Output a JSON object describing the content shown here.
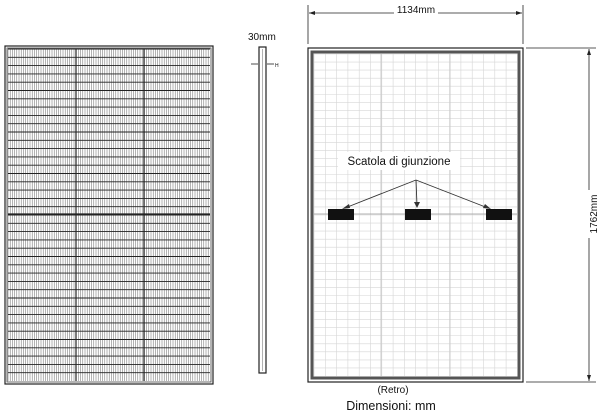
{
  "labels": {
    "width_dimension": "1134mm",
    "height_dimension": "1762mm",
    "thickness_dimension": "30mm",
    "thickness_marker": "H",
    "junction_box": "Scatola di giunzione",
    "rear_view": "(Retro)",
    "dimensions_unit": "Dimensioni: mm"
  },
  "colors": {
    "line": "#111111",
    "frame": "#444444",
    "grid": "#d9d9d9",
    "junction_box": "#111111"
  }
}
